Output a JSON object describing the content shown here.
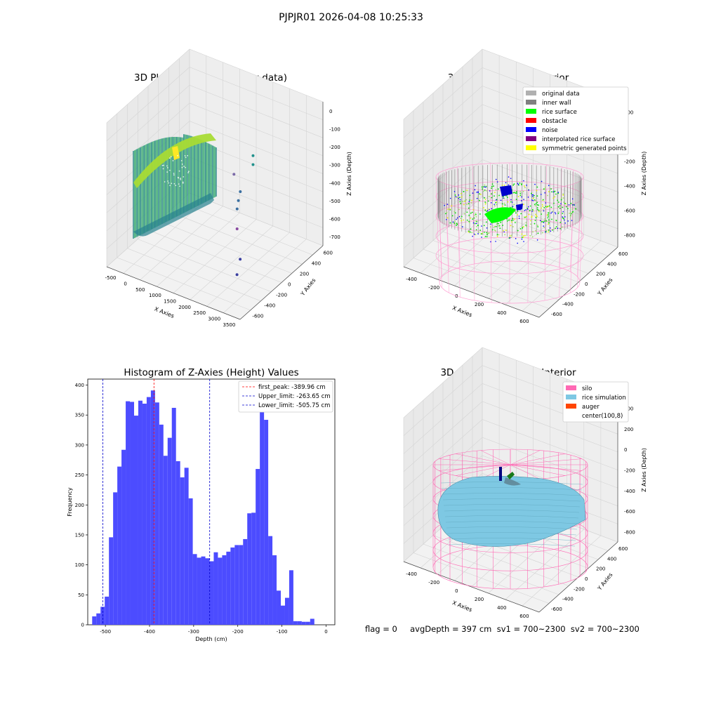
{
  "suptitle": "PJPJR01 2026-04-08 10:25:33",
  "status_text": "flag = 0     avgDepth = 397 cm  sv1 = 700~2300  sv2 = 700~2300",
  "colors": {
    "hist_bar": "#4c4cff",
    "first_peak_line": "#ff0000",
    "limit_line": "#0000cc",
    "pane": "#f2f2f2",
    "silo": "#ff69b4",
    "rice_sim": "#7ec8e3",
    "auger": "#ff4500"
  },
  "chart_data": [
    {
      "type": "scatter",
      "title": "3D Plot of Silo Interior(row data)",
      "xlabel": "X Axies",
      "ylabel": "Y Axies",
      "zlabel": "Z Axies (Depth)",
      "x_ticks": [
        "-500",
        "0",
        "500",
        "1000",
        "1500",
        "2000",
        "2500",
        "3000",
        "3500"
      ],
      "y_ticks": [
        "-600",
        "-400",
        "-200",
        "0",
        "200",
        "400",
        "600"
      ],
      "z_ticks": [
        "0",
        "-100",
        "-200",
        "-300",
        "-400",
        "-500",
        "-600",
        "-700"
      ],
      "xlim": [
        -600,
        3600
      ],
      "ylim": [
        -650,
        650
      ],
      "zlim": [
        -750,
        50
      ],
      "colormap": "viridis",
      "outlier_points": [
        {
          "x": 1500,
          "y": 600,
          "z": -380
        },
        {
          "x": 1500,
          "y": 600,
          "z": -430
        },
        {
          "x": 1100,
          "y": 500,
          "z": -480
        },
        {
          "x": 1400,
          "y": 450,
          "z": -540
        },
        {
          "x": 1400,
          "y": 420,
          "z": -580
        },
        {
          "x": 1400,
          "y": 400,
          "z": -620
        },
        {
          "x": 1800,
          "y": 200,
          "z": -640
        },
        {
          "x": 2700,
          "y": -200,
          "z": -620
        },
        {
          "x": 2700,
          "y": -250,
          "z": -690
        }
      ],
      "grid": true
    },
    {
      "type": "scatter",
      "title": "3D classify of Silo Interior",
      "xlabel": "X Axies",
      "ylabel": "Y Axies",
      "zlabel": "Z Axies (Depth)",
      "x_ticks": [
        "-400",
        "-200",
        "0",
        "200",
        "400",
        "600"
      ],
      "y_ticks": [
        "-600",
        "-400",
        "-200",
        "0",
        "200",
        "400",
        "600"
      ],
      "z_ticks": [
        "200",
        "0",
        "-200",
        "-400",
        "-600",
        "-800"
      ],
      "xlim": [
        -550,
        750
      ],
      "ylim": [
        -650,
        650
      ],
      "zlim": [
        -900,
        300
      ],
      "legend_position": "top-right",
      "legend": [
        {
          "label": "original data",
          "color": "#b0b0b0"
        },
        {
          "label": "inner wall",
          "color": "#808080"
        },
        {
          "label": "rice surface",
          "color": "#00ff00"
        },
        {
          "label": "obstacle",
          "color": "#ff0000"
        },
        {
          "label": "noise",
          "color": "#0000ff"
        },
        {
          "label": "interpolated rice surface",
          "color": "#800080"
        },
        {
          "label": "symmetric generated points",
          "color": "#ffff00"
        }
      ],
      "grid": true
    },
    {
      "type": "bar",
      "title": "Histogram of Z-Axies (Height) Values",
      "xlabel": "Depth (cm)",
      "ylabel": "Frequency",
      "xlim": [
        -540,
        20
      ],
      "ylim": [
        0,
        410
      ],
      "x_ticks": [
        -500,
        -400,
        -300,
        -200,
        -100,
        0
      ],
      "y_ticks": [
        0,
        50,
        100,
        150,
        200,
        250,
        300,
        350,
        400
      ],
      "bin_start": -530,
      "bin_width": 9.5,
      "values": [
        14,
        19,
        30,
        47,
        146,
        221,
        264,
        292,
        373,
        372,
        349,
        374,
        369,
        380,
        391,
        371,
        334,
        282,
        312,
        362,
        273,
        246,
        262,
        211,
        118,
        112,
        114,
        111,
        106,
        121,
        112,
        116,
        122,
        129,
        133,
        133,
        143,
        186,
        187,
        260,
        362,
        342,
        148,
        116,
        57,
        32,
        45,
        91,
        6,
        6,
        5,
        5,
        10
      ],
      "vlines": [
        {
          "label": "first_peak: -389.96 cm",
          "x": -389.96,
          "color": "#ff0000"
        },
        {
          "label": "Upper_limit: -263.65 cm",
          "x": -263.65,
          "color": "#0000cc"
        },
        {
          "label": "Lower_limit: -505.75 cm",
          "x": -505.75,
          "color": "#0000cc"
        }
      ],
      "legend_position": "top-right",
      "grid": false
    },
    {
      "type": "surface",
      "title": "3D simulation of Silo Interior",
      "xlabel": "X Axies",
      "ylabel": "Y Axies",
      "zlabel": "Z Axies (Depth)",
      "x_ticks": [
        "-400",
        "-200",
        "0",
        "200",
        "400",
        "600"
      ],
      "y_ticks": [
        "-600",
        "-400",
        "-200",
        "0",
        "200",
        "400",
        "600"
      ],
      "z_ticks": [
        "400",
        "200",
        "0",
        "-200",
        "-400",
        "-600",
        "-800"
      ],
      "xlim": [
        -550,
        750
      ],
      "ylim": [
        -650,
        650
      ],
      "zlim": [
        -900,
        450
      ],
      "legend_position": "top-right",
      "legend": [
        {
          "label": "silo",
          "color": "#ff69b4"
        },
        {
          "label": "rice simulation",
          "color": "#7ec8e3"
        },
        {
          "label": "auger",
          "color": "#ff4500"
        },
        {
          "label": "center(100,8)",
          "color": ""
        }
      ],
      "grid": true
    }
  ]
}
